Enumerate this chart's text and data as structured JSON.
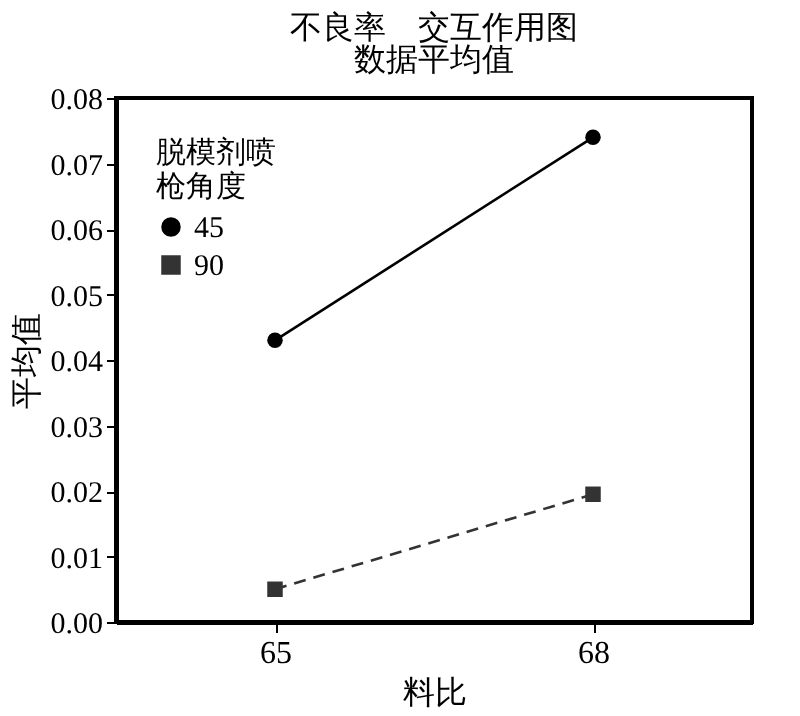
{
  "chart_data": {
    "type": "line",
    "title": "不良率　交互作用图",
    "subtitle": "数据平均值",
    "xlabel": "料比",
    "ylabel": "平均值",
    "legend_title": "脱模剂喷枪角度",
    "categories": [
      "65",
      "68"
    ],
    "series": [
      {
        "name": "45",
        "color": "#000000",
        "values": [
          0.043,
          0.074
        ],
        "marker": "circle",
        "line_style": "solid"
      },
      {
        "name": "90",
        "color": "#333333",
        "values": [
          0.005,
          0.0195
        ],
        "marker": "square",
        "line_style": "dashed"
      }
    ],
    "ylim": [
      0,
      0.08
    ],
    "yticks": [
      {
        "value": 0,
        "label": "0.00"
      },
      {
        "value": 0.01,
        "label": "0.01"
      },
      {
        "value": 0.02,
        "label": "0.02"
      },
      {
        "value": 0.03,
        "label": "0.03"
      },
      {
        "value": 0.04,
        "label": "0.04"
      },
      {
        "value": 0.05,
        "label": "0.05"
      },
      {
        "value": 0.06,
        "label": "0.06"
      },
      {
        "value": 0.07,
        "label": "0.07"
      },
      {
        "value": 0.08,
        "label": "0.08"
      }
    ],
    "grid": false,
    "legend": "top left"
  }
}
